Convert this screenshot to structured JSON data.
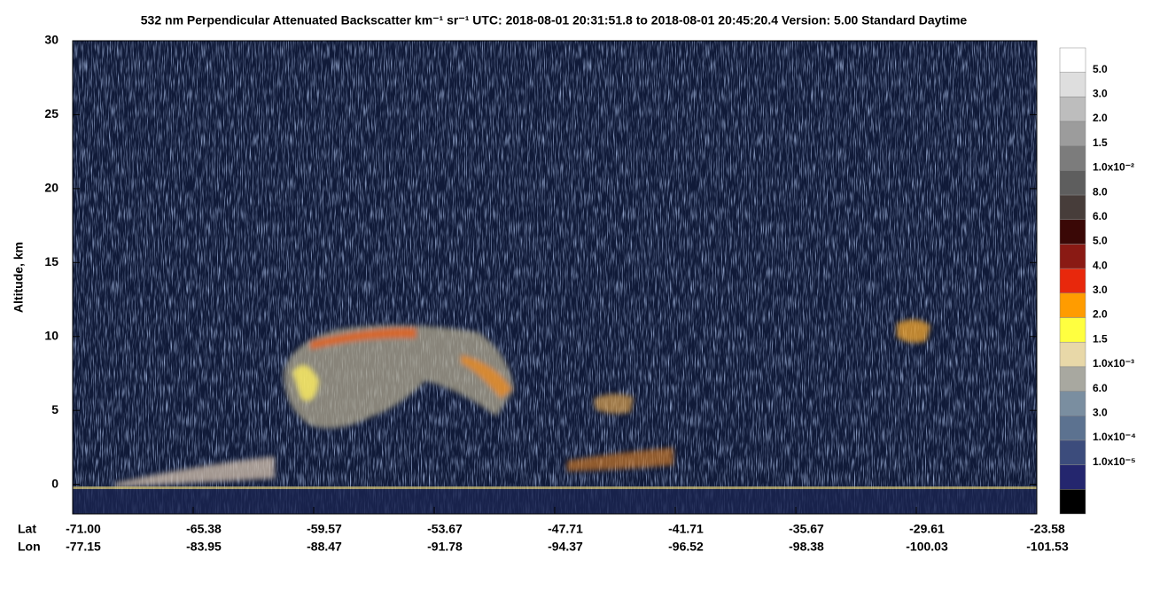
{
  "chart_data": {
    "type": "curtain",
    "title": "532 nm Perpendicular Attenuated Backscatter km⁻¹ sr⁻¹  UTC: 2018-08-01 20:31:51.8 to 2018-08-01 20:45:20.4  Version: 5.00 Standard Daytime",
    "ylabel": "Altitude, km",
    "ylim": [
      -2,
      30
    ],
    "yticks": [
      0,
      5,
      10,
      15,
      20,
      25,
      30
    ],
    "x_row_labels": [
      "Lat",
      "Lon"
    ],
    "lat": [
      "-71.00",
      "-65.38",
      "-59.57",
      "-53.67",
      "-47.71",
      "-41.71",
      "-35.67",
      "-29.61",
      "-23.58"
    ],
    "lon": [
      "-77.15",
      "-83.95",
      "-88.47",
      "-91.78",
      "-94.37",
      "-96.52",
      "-98.38",
      "-100.03",
      "-101.53"
    ],
    "colorbar": {
      "colors": [
        "#ffffff",
        "#dedede",
        "#bdbdbd",
        "#9c9c9c",
        "#7c7c7c",
        "#5e5e5e",
        "#473d3a",
        "#3a0806",
        "#8a1a14",
        "#e8280c",
        "#ff9c00",
        "#ffff40",
        "#e8d8a8",
        "#a8a8a0",
        "#7a8ea0",
        "#5c7290",
        "#3c4c7c",
        "#24266e",
        "#000000"
      ],
      "labels": [
        "5.0",
        "3.0",
        "2.0",
        "1.5",
        "1.0x10⁻²",
        "8.0",
        "6.0",
        "5.0",
        "4.0",
        "3.0",
        "2.0",
        "1.5",
        "1.0x10⁻³",
        "6.0",
        "3.0",
        "1.0x10⁻⁴",
        "1.0x10⁻⁵"
      ]
    }
  }
}
